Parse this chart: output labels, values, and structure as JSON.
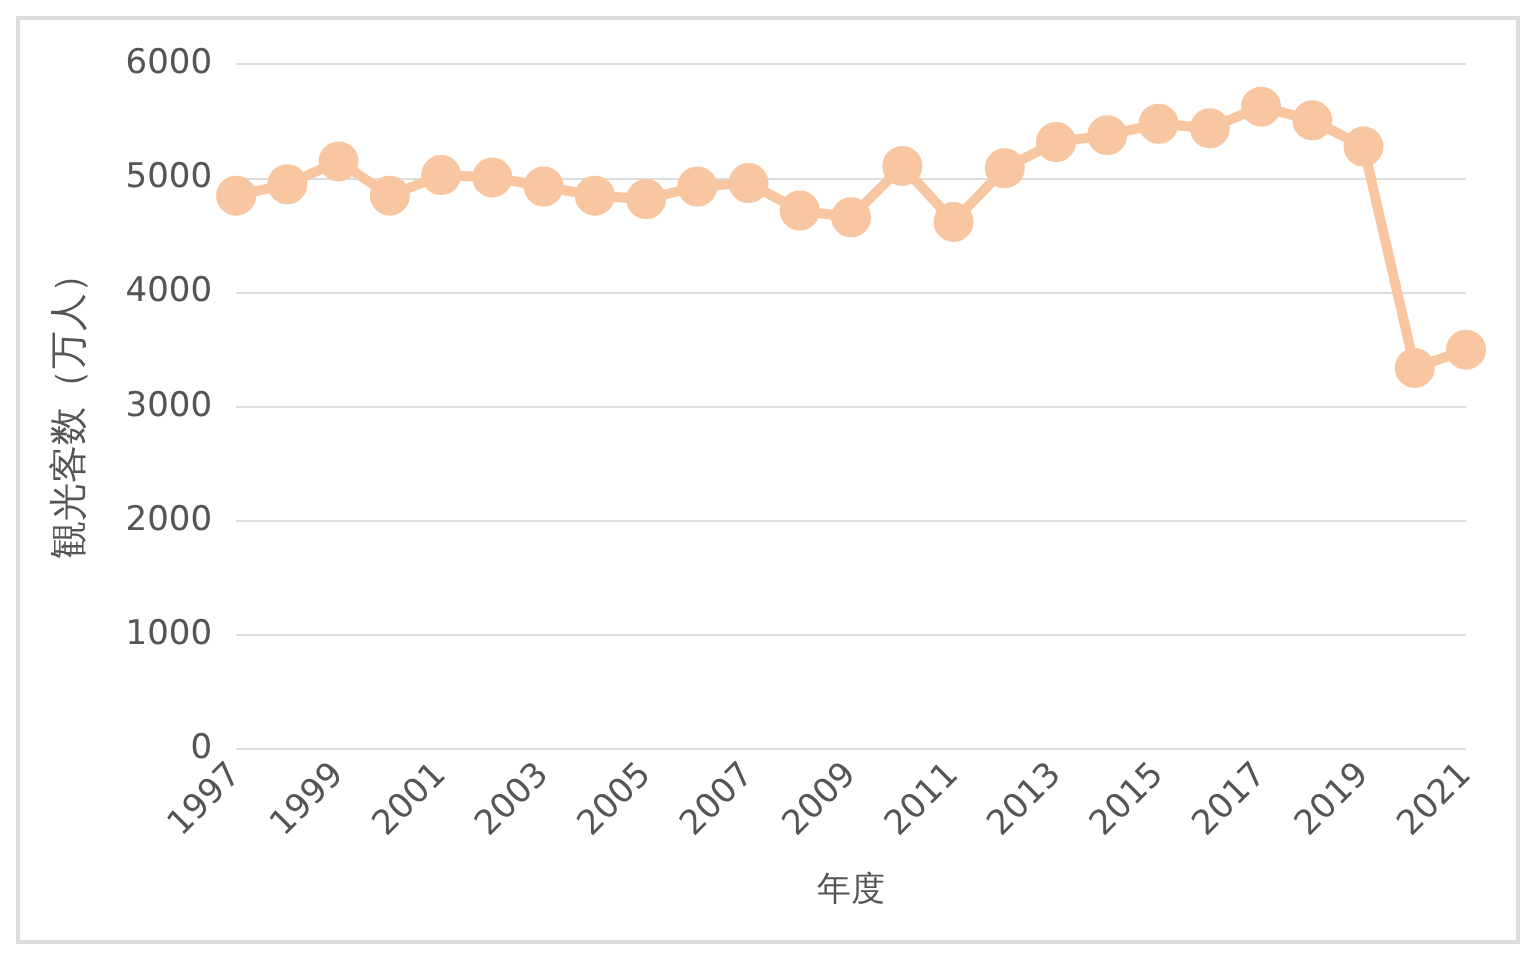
{
  "chart_data": {
    "type": "line",
    "xlabel": "年度",
    "ylabel": "観光客数（万人）",
    "categories": [
      "1997",
      null,
      "1999",
      null,
      "2001",
      null,
      "2003",
      null,
      "2005",
      null,
      "2007",
      null,
      "2009",
      null,
      "2011",
      null,
      "2013",
      null,
      "2015",
      null,
      "2017",
      null,
      "2019",
      null,
      "2021"
    ],
    "series": [
      {
        "color": "#f8c6a0",
        "values": [
          4850,
          4950,
          5150,
          4850,
          5030,
          5010,
          4930,
          4850,
          4820,
          4930,
          4960,
          4720,
          4660,
          5110,
          4620,
          5090,
          5320,
          5380,
          5480,
          5440,
          5630,
          5510,
          5280,
          3340,
          3500
        ]
      }
    ],
    "ylim": [
      0,
      6000
    ],
    "yticks": [
      0,
      1000,
      2000,
      3000,
      4000,
      5000,
      6000
    ],
    "grid": "y",
    "legend": false,
    "marker": "circle",
    "line_style": "solid"
  }
}
